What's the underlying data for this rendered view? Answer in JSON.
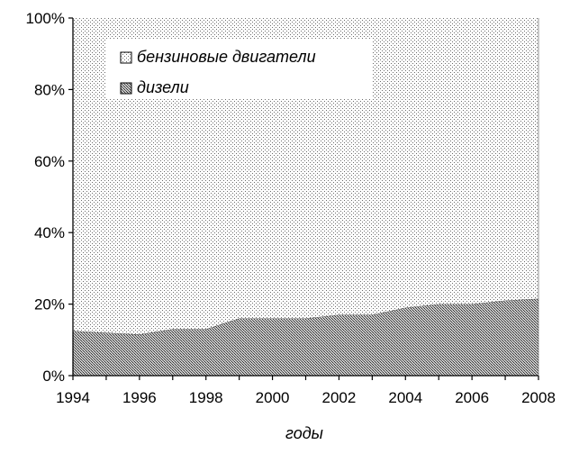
{
  "chart_data": {
    "type": "area",
    "stacked": true,
    "normalized": true,
    "x": [
      1994,
      1995,
      1996,
      1997,
      1998,
      1999,
      2000,
      2001,
      2002,
      2003,
      2004,
      2005,
      2006,
      2007,
      2008
    ],
    "series": [
      {
        "name": "дизели",
        "values": [
          12.5,
          12,
          11.5,
          13,
          13,
          16,
          16,
          16,
          17,
          17,
          19,
          20,
          20,
          21,
          21.5
        ],
        "pattern": "dense-dots"
      },
      {
        "name": "бензиновые двигатели",
        "values": [
          87.5,
          88,
          88.5,
          87,
          87,
          84,
          84,
          84,
          83,
          83,
          81,
          80,
          80,
          79,
          78.5
        ],
        "pattern": "light-dots"
      }
    ],
    "xlabel": "годы",
    "ylabel": "",
    "xlim": [
      1994,
      2008
    ],
    "ylim": [
      0,
      100
    ],
    "x_ticks": [
      "1994",
      "1996",
      "1998",
      "2000",
      "2002",
      "2004",
      "2006",
      "2008"
    ],
    "y_ticks": [
      "0%",
      "20%",
      "40%",
      "60%",
      "80%",
      "100%"
    ],
    "legend": {
      "placement": "top-left inside",
      "entries": [
        "бензиновые двигатели",
        "дизели"
      ]
    },
    "colors": {
      "background": "#ffffff",
      "diesel_fill": "#9a9a9a",
      "petrol_fill": "#e4e4e4",
      "axis": "#000000"
    }
  }
}
